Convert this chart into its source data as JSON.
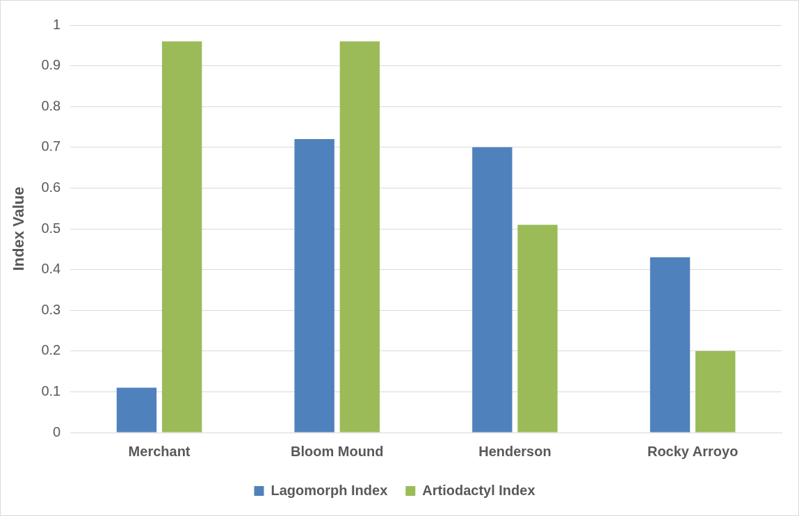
{
  "chart_data": {
    "type": "bar",
    "ylabel": "Index Value",
    "categories": [
      "Merchant",
      "Bloom Mound",
      "Henderson",
      "Rocky Arroyo"
    ],
    "series": [
      {
        "name": "Lagomorph Index",
        "color": "#4f81bd",
        "values": [
          0.11,
          0.72,
          0.7,
          0.43
        ]
      },
      {
        "name": "Artiodactyl Index",
        "color": "#9bbb59",
        "values": [
          0.96,
          0.96,
          0.51,
          0.2
        ]
      }
    ],
    "ylim": [
      0,
      1
    ],
    "yticks": [
      0,
      0.1,
      0.2,
      0.3,
      0.4,
      0.5,
      0.6,
      0.7,
      0.8,
      0.9,
      1
    ],
    "grid": "y",
    "legend": "bottom"
  }
}
